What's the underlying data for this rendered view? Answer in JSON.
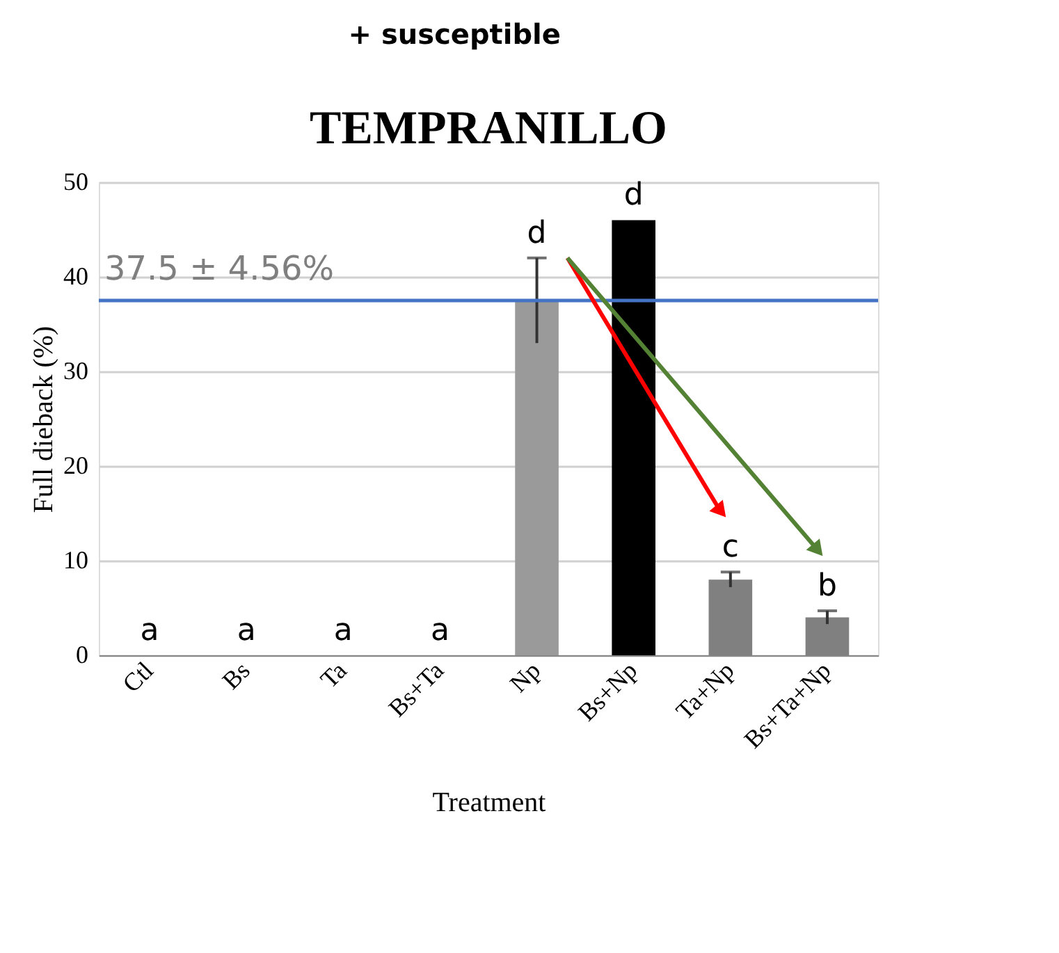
{
  "chart_data": {
    "type": "bar",
    "title": "TEMPRANILLO",
    "subtitle": "+ susceptible",
    "xlabel": "Treatment",
    "ylabel": "Full dieback (%)",
    "categories": [
      "Ctl",
      "Bs",
      "Ta",
      "Bs+Ta",
      "Np",
      "Bs+Np",
      "Ta+Np",
      "Bs+Ta+Np"
    ],
    "values": [
      0,
      0,
      0,
      0,
      37.5,
      46,
      8,
      4
    ],
    "colors": [
      "#808080",
      "#808080",
      "#808080",
      "#808080",
      "#9a9a9a",
      "#000000",
      "#808080",
      "#808080"
    ],
    "errors": [
      null,
      null,
      null,
      null,
      4.5,
      null,
      0.8,
      0.7
    ],
    "ylim": [
      0,
      50
    ],
    "yticks": [
      0,
      10,
      20,
      30,
      40,
      50
    ],
    "grid": "y",
    "ref_lines": [
      {
        "axis": "y",
        "value": 37.5,
        "label": "37.5 ± 4.56%",
        "color": "#4472c4"
      }
    ],
    "annotations": [
      "a",
      "a",
      "a",
      "a",
      "d",
      "d",
      "c",
      "b"
    ]
  }
}
